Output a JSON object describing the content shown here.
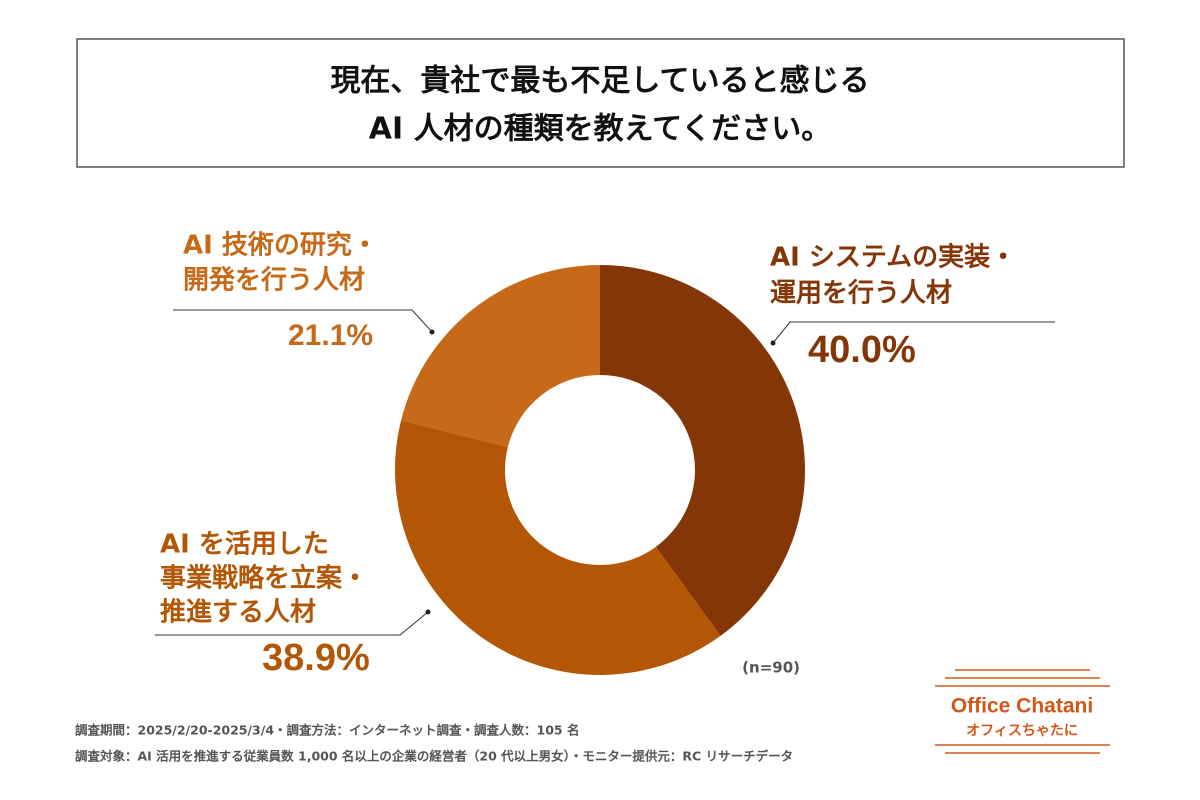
{
  "chart_data": {
    "type": "donut",
    "title": [
      "現在、貴社で最も不足していると感じる",
      "AI 人材の種類を教えてください。"
    ],
    "categories": [
      [
        "AI システムの実装・",
        "運用を行う人材"
      ],
      [
        "AI を活用した",
        "事業戦略を立案・",
        "推進する人材"
      ],
      [
        "AI 技術の研究・",
        "開発を行う人材"
      ]
    ],
    "values": [
      40,
      38.9,
      21.1
    ],
    "value_labels": [
      "40.0%",
      "38.9%",
      "21.1%"
    ],
    "colors": [
      "#843607",
      "#b35706",
      "#c66a1a"
    ],
    "note": "(n=90)",
    "footnotes": [
      "調査期間：2025/2/20-2025/3/4・調査方法：インターネット調査・調査人数：105 名",
      "調査対象：AI 活用を推進する従業員数 1,000 名以上の企業の経営者（20 代以上男女）・モニター提供元：RC リサーチデータ"
    ],
    "logo": {
      "name": "Office Chatani",
      "subname": "オフィスちゃたに"
    }
  }
}
